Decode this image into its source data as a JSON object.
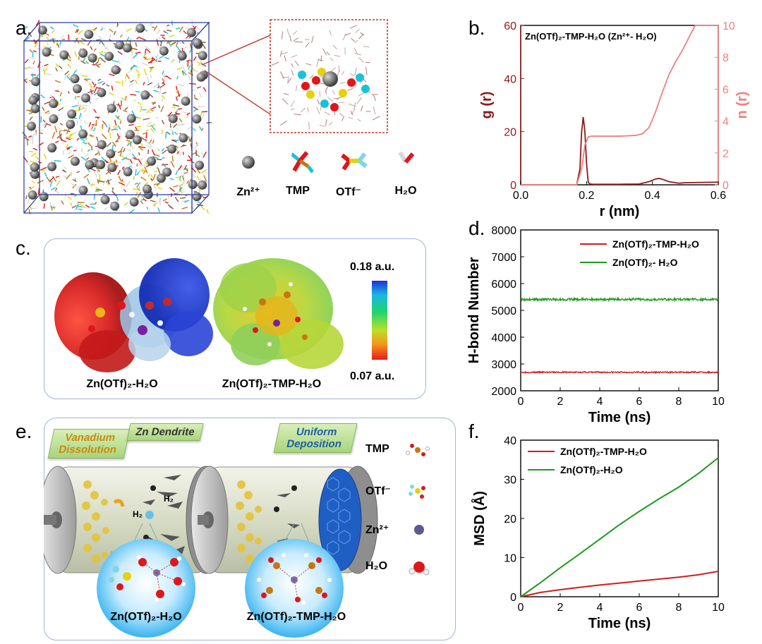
{
  "panels": {
    "a": "a.",
    "b": "b.",
    "c": "c.",
    "d": "d.",
    "e": "e.",
    "f": "f."
  },
  "panel_a": {
    "legend": [
      "Zn²⁺",
      "TMP",
      "OTf⁻",
      "H₂O"
    ]
  },
  "panel_c": {
    "label_left": "Zn(OTf)₂-H₂O",
    "label_right": "Zn(OTf)₂-TMP-H₂O",
    "scale_top": "0.18 a.u.",
    "scale_bottom": "0.07 a.u."
  },
  "panel_e": {
    "banner_vanadium": "Vanadium Dissolution",
    "banner_dendrite": "Zn Dendrite",
    "banner_uniform": "Uniform Deposition",
    "h2_a": "H₂",
    "h2_b": "H₂",
    "bubble_left": "Zn(OTf)₂-H₂O",
    "bubble_right": "Zn(OTf)₂-TMP-H₂O",
    "legend": [
      "TMP",
      "OTf⁻",
      "Zn²⁺",
      "H₂O"
    ]
  },
  "colors": {
    "dark_red": "#8b1a1a",
    "pink": "#f08080",
    "red": "#cc1f1f",
    "green": "#1f9a1f",
    "box_border": "#9fb6d4",
    "zn_gray": "#7a7a7a"
  },
  "chart_data": [
    {
      "id": "b",
      "type": "line",
      "title": "Zn(OTf)₂-TMP-H₂O (Zn²⁺- H₂O)",
      "xlabel": "r (nm)",
      "ylabel": "g (r)",
      "ylabel_right": "n (r)",
      "xlim": [
        0,
        0.6
      ],
      "ylim": [
        0,
        60
      ],
      "ylim_right": [
        0,
        10
      ],
      "x_ticks": [
        "0.0",
        "0.2",
        "0.4",
        "0.6"
      ],
      "y_ticks": [
        "0",
        "20",
        "40",
        "60"
      ],
      "y_ticks_right": [
        "0",
        "2",
        "4",
        "6",
        "8",
        "10"
      ],
      "series": [
        {
          "axis": "left",
          "color": "#8b1a1a",
          "x": [
            0,
            0.17,
            0.18,
            0.185,
            0.19,
            0.195,
            0.2,
            0.205,
            0.21,
            0.22,
            0.3,
            0.36,
            0.39,
            0.41,
            0.42,
            0.43,
            0.45,
            0.48,
            0.5,
            0.6
          ],
          "y": [
            0,
            0,
            6,
            20,
            25.5,
            20,
            8,
            1,
            0.3,
            0.2,
            0.2,
            0.3,
            1.2,
            2.2,
            2.4,
            2.1,
            1.2,
            0.6,
            0.8,
            1.0
          ]
        },
        {
          "axis": "right",
          "color": "#f08080",
          "x": [
            0,
            0.17,
            0.185,
            0.195,
            0.205,
            0.215,
            0.25,
            0.3,
            0.35,
            0.37,
            0.39,
            0.41,
            0.43,
            0.45,
            0.47,
            0.49,
            0.51,
            0.53,
            0.55,
            0.6
          ],
          "y": [
            0,
            0,
            1.0,
            2.5,
            3.0,
            3.05,
            3.05,
            3.05,
            3.1,
            3.2,
            3.6,
            4.6,
            5.8,
            6.9,
            7.7,
            8.4,
            9.2,
            10,
            10,
            10
          ]
        }
      ]
    },
    {
      "id": "d",
      "type": "line",
      "xlabel": "Time (ns)",
      "ylabel": "H-bond Number",
      "xlim": [
        0,
        10
      ],
      "ylim": [
        2000,
        8000
      ],
      "x_ticks": [
        "0",
        "2",
        "4",
        "6",
        "8",
        "10"
      ],
      "y_ticks": [
        "2000",
        "3000",
        "4000",
        "5000",
        "6000",
        "7000",
        "8000"
      ],
      "series": [
        {
          "name": "Zn(OTf)₂-TMP-H₂O",
          "color": "#cc1f1f",
          "mean": 2690,
          "noise": 25
        },
        {
          "name": "Zn(OTf)₂- H₂O",
          "color": "#1f9a1f",
          "mean": 5410,
          "noise": 45
        }
      ]
    },
    {
      "id": "f",
      "type": "line",
      "xlabel": "Time (ns)",
      "ylabel": "MSD (Å)",
      "xlim": [
        0,
        10
      ],
      "ylim": [
        0,
        40
      ],
      "x_ticks": [
        "0",
        "2",
        "4",
        "6",
        "8",
        "10"
      ],
      "y_ticks": [
        "0",
        "10",
        "20",
        "30",
        "40"
      ],
      "series": [
        {
          "name": "Zn(OTf)₂-TMP-H₂O",
          "color": "#cc1f1f",
          "x": [
            0,
            1,
            2,
            3,
            4,
            5,
            6,
            7,
            8,
            9,
            10
          ],
          "y": [
            0,
            1.1,
            1.8,
            2.4,
            3.0,
            3.5,
            4.0,
            4.5,
            5.0,
            5.6,
            6.5
          ]
        },
        {
          "name": "Zn(OTf)₂-H₂O",
          "color": "#1f9a1f",
          "x": [
            0,
            1,
            2,
            3,
            4,
            5,
            6,
            7,
            8,
            9,
            10
          ],
          "y": [
            0,
            3.6,
            7.4,
            11.0,
            14.7,
            18.4,
            21.8,
            25.0,
            28.0,
            31.5,
            35.5
          ]
        }
      ]
    }
  ]
}
